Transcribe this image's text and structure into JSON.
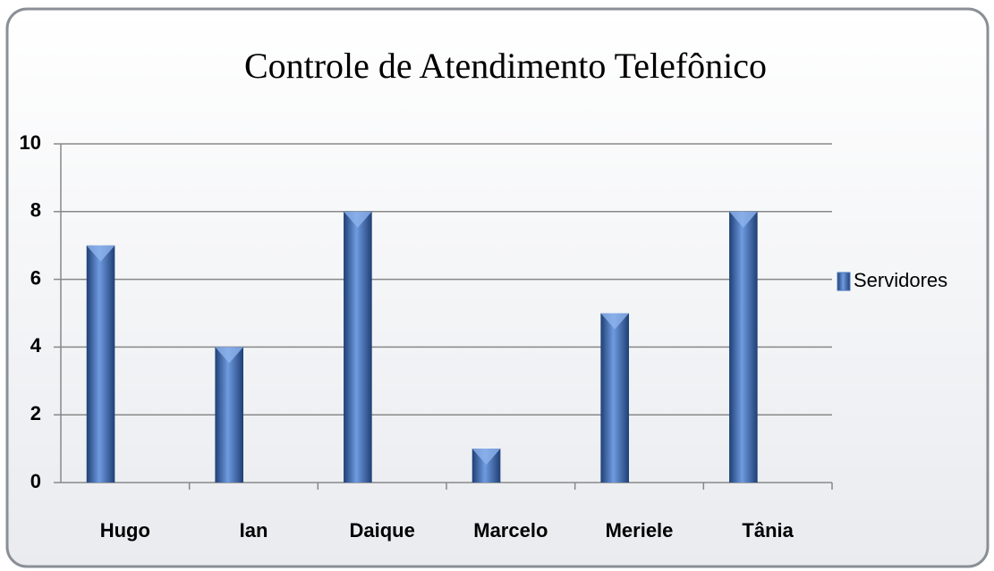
{
  "chart_data": {
    "type": "bar",
    "title": "Controle de Atendimento Telefônico",
    "categories": [
      "Hugo",
      "Ian",
      "Daique",
      "Marcelo",
      "Meriele",
      "Tânia"
    ],
    "series": [
      {
        "name": "Servidores",
        "color": "#4a76be",
        "values": [
          7,
          4,
          8,
          1,
          5,
          8
        ]
      }
    ],
    "ylim": [
      0,
      10
    ],
    "yticks": [
      0,
      2,
      4,
      6,
      8,
      10
    ],
    "grid": true,
    "legend": "right"
  }
}
